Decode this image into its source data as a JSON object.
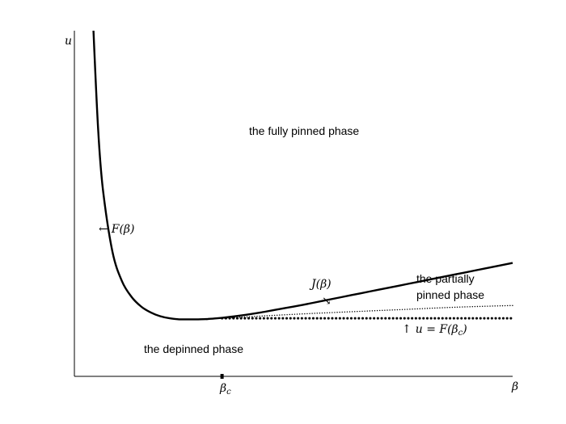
{
  "chart_data": {
    "type": "line",
    "title": "",
    "xlabel": "β",
    "ylabel": "u",
    "grid": false,
    "x_ticks": [
      "β_c"
    ],
    "series": [
      {
        "name": "F(β)",
        "style": "solid-thick",
        "points": [
          [
            0.2,
            10.0
          ],
          [
            0.25,
            7.1
          ],
          [
            0.3,
            5.4
          ],
          [
            0.4,
            3.6
          ],
          [
            0.5,
            2.75
          ],
          [
            0.6,
            2.3
          ],
          [
            0.7,
            2.02
          ],
          [
            0.8,
            1.85
          ],
          [
            0.9,
            1.74
          ],
          [
            1.0,
            1.68
          ],
          [
            1.1,
            1.65
          ],
          [
            1.2,
            1.65
          ],
          [
            1.3,
            1.65
          ],
          [
            1.4,
            1.66
          ],
          [
            1.5,
            1.68
          ],
          [
            1.6,
            1.71
          ],
          [
            1.8,
            1.78
          ],
          [
            2.0,
            1.87
          ],
          [
            2.2,
            1.97
          ],
          [
            2.4,
            2.07
          ],
          [
            2.6,
            2.18
          ],
          [
            2.8,
            2.29
          ],
          [
            3.0,
            2.4
          ],
          [
            3.2,
            2.51
          ],
          [
            3.4,
            2.62
          ],
          [
            3.6,
            2.73
          ],
          [
            3.8,
            2.84
          ],
          [
            4.0,
            2.95
          ],
          [
            4.2,
            3.06
          ],
          [
            4.4,
            3.17
          ],
          [
            4.6,
            3.28
          ]
        ]
      },
      {
        "name": "J(β)",
        "style": "dotted-fine",
        "points": [
          [
            1.55,
            1.68
          ],
          [
            2.0,
            1.75
          ],
          [
            2.5,
            1.82
          ],
          [
            3.0,
            1.88
          ],
          [
            3.5,
            1.94
          ],
          [
            4.0,
            2.0
          ],
          [
            4.6,
            2.05
          ]
        ]
      },
      {
        "name": "u = F(β_c)",
        "style": "dotted-heavy",
        "points": [
          [
            1.55,
            1.68
          ],
          [
            4.6,
            1.68
          ]
        ]
      }
    ],
    "beta_c": 1.55,
    "xlim": [
      0,
      4.6
    ],
    "ylim": [
      0,
      10
    ],
    "region_labels": [
      "the fully pinned phase",
      "the partially pinned phase",
      "the depinned phase"
    ],
    "annotations": [
      "← F(β)",
      "J(β)",
      "↘",
      "↑ u = F(β_c)"
    ],
    "colors": {
      "curve": "#000000",
      "background": "#ffffff"
    }
  },
  "labels": {
    "fully_pinned": "the fully pinned phase",
    "partially_line1": "the partially",
    "partially_line2": "pinned phase",
    "depinned": "the depinned phase",
    "f_arrow": "←",
    "f_name": "F(β)",
    "j_name": "J(β)",
    "j_arrow": "↘",
    "u_line_arrow": "↑",
    "u_line_text": "u = F(β",
    "u_line_sub": "c",
    "u_line_close": ")",
    "y_axis": "u",
    "x_axis": "β",
    "beta_c_main": "β",
    "beta_c_sub": "c"
  }
}
